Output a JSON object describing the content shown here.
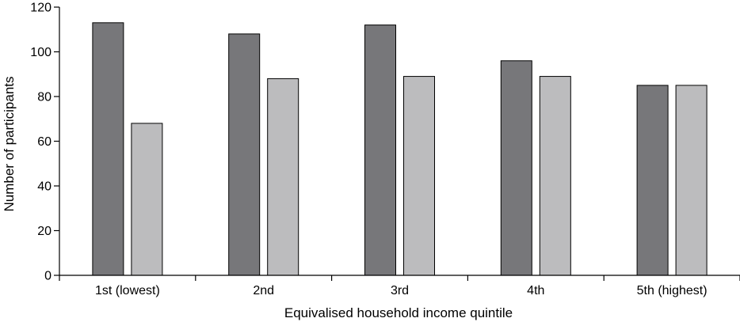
{
  "chart_data": {
    "type": "bar",
    "title": "",
    "xlabel": "Equivalised household income quintile",
    "ylabel": "Number of participants",
    "categories": [
      "1st (lowest)",
      "2nd",
      "3rd",
      "4th",
      "5th (highest)"
    ],
    "ylim": [
      0,
      120
    ],
    "yticks": [
      0,
      20,
      40,
      60,
      80,
      100,
      120
    ],
    "grid": false,
    "legend": "none",
    "series": [
      {
        "values": [
          113,
          108,
          112,
          96,
          85
        ],
        "color": "#77777a"
      },
      {
        "values": [
          68,
          88,
          89,
          89,
          85
        ],
        "color": "#bcbcbe"
      }
    ]
  }
}
